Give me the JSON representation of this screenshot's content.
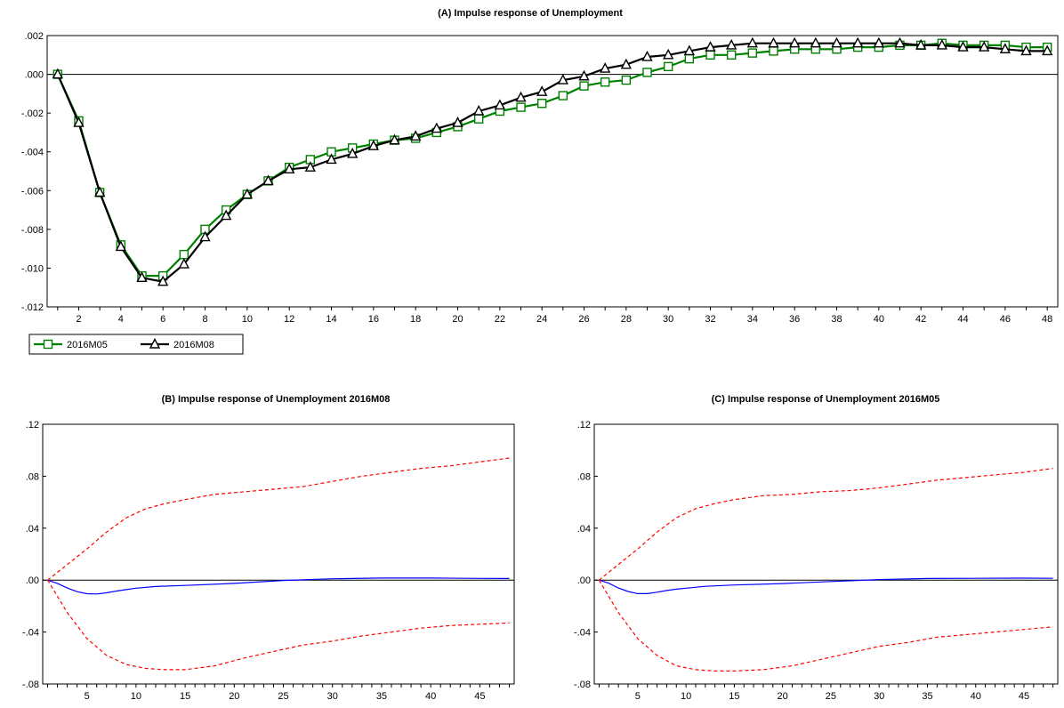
{
  "chart_data": [
    {
      "id": "A",
      "type": "line",
      "title": "(A) Impulse response of Unemployment",
      "xlabel": "",
      "ylabel": "",
      "x_ticks": [
        "2",
        "4",
        "6",
        "8",
        "10",
        "12",
        "14",
        "16",
        "18",
        "20",
        "22",
        "24",
        "26",
        "28",
        "30",
        "32",
        "34",
        "36",
        "38",
        "40",
        "42",
        "44",
        "46",
        "48"
      ],
      "y_ticks": [
        ".002",
        ".000",
        "-.002",
        "-.004",
        "-.006",
        "-.008",
        "-.010",
        "-.012"
      ],
      "ylim": [
        -0.012,
        0.002
      ],
      "xlim": [
        1,
        48
      ],
      "zero_line": true,
      "legend": {
        "position": "bottom-left"
      },
      "series": [
        {
          "name": "2016M05",
          "color": "#008000",
          "marker": "square",
          "values": [
            0.0,
            -0.0024,
            -0.0061,
            -0.0088,
            -0.0104,
            -0.0104,
            -0.0093,
            -0.008,
            -0.007,
            -0.0062,
            -0.0055,
            -0.0048,
            -0.0044,
            -0.004,
            -0.0038,
            -0.0036,
            -0.0034,
            -0.0033,
            -0.003,
            -0.0027,
            -0.0023,
            -0.0019,
            -0.0017,
            -0.0015,
            -0.0011,
            -0.0006,
            -0.0004,
            -0.0003,
            0.0001,
            0.0004,
            0.0008,
            0.001,
            0.001,
            0.0011,
            0.0012,
            0.0013,
            0.0013,
            0.0013,
            0.0014,
            0.0014,
            0.0015,
            0.0015,
            0.0016,
            0.0015,
            0.0015,
            0.0015,
            0.0014,
            0.0014
          ]
        },
        {
          "name": "2016M08",
          "color": "#000000",
          "marker": "triangle",
          "values": [
            0.0,
            -0.0025,
            -0.0061,
            -0.0089,
            -0.0105,
            -0.0107,
            -0.0098,
            -0.0084,
            -0.0073,
            -0.0062,
            -0.0055,
            -0.0049,
            -0.0048,
            -0.0044,
            -0.0041,
            -0.0037,
            -0.0034,
            -0.0032,
            -0.0028,
            -0.0025,
            -0.0019,
            -0.0016,
            -0.0012,
            -0.0009,
            -0.0003,
            -0.0001,
            0.0003,
            0.0005,
            0.0009,
            0.001,
            0.0012,
            0.0014,
            0.0015,
            0.0016,
            0.0016,
            0.0016,
            0.0016,
            0.0016,
            0.0016,
            0.0016,
            0.0016,
            0.0015,
            0.0015,
            0.0014,
            0.0014,
            0.0013,
            0.0012,
            0.0012
          ]
        }
      ]
    },
    {
      "id": "B",
      "type": "line",
      "title": "(B) Impulse response of Unemployment 2016M08",
      "xlabel": "",
      "ylabel": "",
      "x_ticks": [
        "5",
        "10",
        "15",
        "20",
        "25",
        "30",
        "35",
        "40",
        "45"
      ],
      "y_ticks": [
        ".12",
        ".08",
        ".04",
        ".00",
        "-.04",
        "-.08"
      ],
      "ylim": [
        -0.08,
        0.12
      ],
      "xlim": [
        1,
        48
      ],
      "zero_line": true,
      "series": [
        {
          "color": "#0000ff",
          "style": "solid",
          "x": [
            1,
            2,
            3,
            4,
            5,
            6,
            7,
            8,
            9,
            10,
            12,
            15,
            20,
            25,
            30,
            35,
            40,
            45,
            48
          ],
          "values": [
            0.0,
            -0.0025,
            -0.0061,
            -0.0089,
            -0.0105,
            -0.0107,
            -0.0098,
            -0.0084,
            -0.0073,
            -0.0062,
            -0.0049,
            -0.0041,
            -0.0025,
            -0.0003,
            0.001,
            0.0016,
            0.0016,
            0.0013,
            0.0012
          ]
        },
        {
          "color": "#ff0000",
          "style": "dashed",
          "x": [
            1,
            3,
            5,
            7,
            9,
            11,
            13,
            15,
            18,
            21,
            24,
            27,
            30,
            33,
            36,
            39,
            42,
            45,
            48
          ],
          "values": [
            0.0,
            0.012,
            0.024,
            0.037,
            0.048,
            0.055,
            0.059,
            0.062,
            0.066,
            0.068,
            0.07,
            0.072,
            0.076,
            0.08,
            0.083,
            0.086,
            0.088,
            0.091,
            0.094
          ]
        },
        {
          "color": "#ff0000",
          "style": "dashed",
          "x": [
            1,
            3,
            5,
            7,
            9,
            11,
            13,
            15,
            18,
            21,
            24,
            27,
            30,
            33,
            36,
            39,
            42,
            45,
            48
          ],
          "values": [
            0.0,
            -0.025,
            -0.045,
            -0.058,
            -0.065,
            -0.068,
            -0.069,
            -0.069,
            -0.066,
            -0.06,
            -0.055,
            -0.05,
            -0.047,
            -0.043,
            -0.04,
            -0.037,
            -0.035,
            -0.034,
            -0.033
          ]
        }
      ]
    },
    {
      "id": "C",
      "type": "line",
      "title": "(C) Impulse response of Unemployment 2016M05",
      "xlabel": "",
      "ylabel": "",
      "x_ticks": [
        "5",
        "10",
        "15",
        "20",
        "25",
        "30",
        "35",
        "40",
        "45"
      ],
      "y_ticks": [
        ".12",
        ".08",
        ".04",
        ".00",
        "-.04",
        "-.08"
      ],
      "ylim": [
        -0.08,
        0.12
      ],
      "xlim": [
        1,
        48
      ],
      "zero_line": true,
      "series": [
        {
          "color": "#0000ff",
          "style": "solid",
          "x": [
            1,
            2,
            3,
            4,
            5,
            6,
            7,
            8,
            9,
            10,
            12,
            15,
            20,
            25,
            30,
            35,
            40,
            45,
            48
          ],
          "values": [
            0.0,
            -0.0024,
            -0.0061,
            -0.0088,
            -0.0104,
            -0.0104,
            -0.0093,
            -0.008,
            -0.007,
            -0.0062,
            -0.0048,
            -0.0038,
            -0.0027,
            -0.0011,
            0.0004,
            0.0012,
            0.0014,
            0.0015,
            0.0014
          ]
        },
        {
          "color": "#ff0000",
          "style": "dashed",
          "x": [
            1,
            3,
            5,
            7,
            9,
            11,
            13,
            15,
            18,
            21,
            24,
            27,
            30,
            33,
            36,
            39,
            42,
            45,
            48
          ],
          "values": [
            0.0,
            0.012,
            0.024,
            0.037,
            0.048,
            0.055,
            0.059,
            0.062,
            0.065,
            0.066,
            0.068,
            0.069,
            0.071,
            0.074,
            0.077,
            0.079,
            0.081,
            0.083,
            0.086
          ]
        },
        {
          "color": "#ff0000",
          "style": "dashed",
          "x": [
            1,
            3,
            5,
            7,
            9,
            11,
            13,
            15,
            18,
            21,
            24,
            27,
            30,
            33,
            36,
            39,
            42,
            45,
            48
          ],
          "values": [
            0.0,
            -0.025,
            -0.045,
            -0.058,
            -0.066,
            -0.069,
            -0.07,
            -0.07,
            -0.069,
            -0.066,
            -0.061,
            -0.056,
            -0.051,
            -0.048,
            -0.044,
            -0.042,
            -0.04,
            -0.038,
            -0.036
          ]
        }
      ]
    }
  ]
}
